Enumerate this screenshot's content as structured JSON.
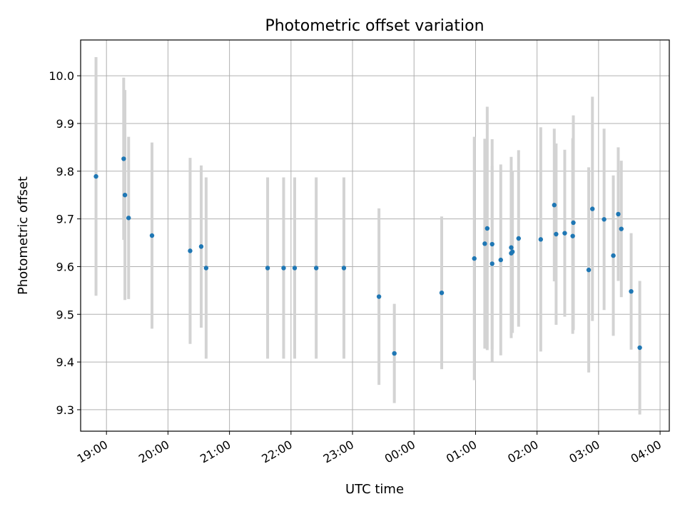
{
  "chart_data": {
    "type": "scatter",
    "title": "Photometric offset variation",
    "xlabel": "UTC time",
    "ylabel": "Photometric offset",
    "grid": true,
    "x_tick_labels": [
      "19:00",
      "20:00",
      "21:00",
      "22:00",
      "23:00",
      "00:00",
      "01:00",
      "02:00",
      "03:00",
      "04:00"
    ],
    "y_tick_labels": [
      "9.3",
      "9.4",
      "9.5",
      "9.6",
      "9.7",
      "9.8",
      "9.9",
      "10.0"
    ],
    "ylim": [
      9.255,
      10.075
    ],
    "xlim_hours": [
      18.58,
      28.15
    ],
    "colors": {
      "point": "#1f77b4",
      "errorbar": "#d3d3d3",
      "grid": "#b0b0b0"
    },
    "points": [
      {
        "t": 18.83,
        "y": 9.789,
        "err": 0.25
      },
      {
        "t": 19.28,
        "y": 9.826,
        "err": 0.17
      },
      {
        "t": 19.3,
        "y": 9.75,
        "err": 0.22
      },
      {
        "t": 19.36,
        "y": 9.702,
        "err": 0.17
      },
      {
        "t": 19.74,
        "y": 9.665,
        "err": 0.195
      },
      {
        "t": 20.36,
        "y": 9.633,
        "err": 0.195
      },
      {
        "t": 20.54,
        "y": 9.642,
        "err": 0.17
      },
      {
        "t": 20.62,
        "y": 9.597,
        "err": 0.19
      },
      {
        "t": 21.62,
        "y": 9.597,
        "err": 0.19
      },
      {
        "t": 21.88,
        "y": 9.597,
        "err": 0.19
      },
      {
        "t": 22.06,
        "y": 9.597,
        "err": 0.19
      },
      {
        "t": 22.41,
        "y": 9.597,
        "err": 0.19
      },
      {
        "t": 22.86,
        "y": 9.597,
        "err": 0.19
      },
      {
        "t": 23.43,
        "y": 9.537,
        "err": 0.185
      },
      {
        "t": 23.68,
        "y": 9.418,
        "err": 0.104
      },
      {
        "t": 24.45,
        "y": 9.545,
        "err": 0.16
      },
      {
        "t": 24.98,
        "y": 9.617,
        "err": 0.255
      },
      {
        "t": 25.15,
        "y": 9.648,
        "err": 0.22
      },
      {
        "t": 25.19,
        "y": 9.68,
        "err": 0.255
      },
      {
        "t": 25.27,
        "y": 9.606,
        "err": 0.205
      },
      {
        "t": 25.27,
        "y": 9.647,
        "err": 0.22
      },
      {
        "t": 25.41,
        "y": 9.614,
        "err": 0.2
      },
      {
        "t": 25.58,
        "y": 9.628,
        "err": 0.17
      },
      {
        "t": 25.58,
        "y": 9.64,
        "err": 0.19
      },
      {
        "t": 25.6,
        "y": 9.631,
        "err": 0.17
      },
      {
        "t": 25.7,
        "y": 9.659,
        "err": 0.185
      },
      {
        "t": 26.06,
        "y": 9.657,
        "err": 0.235
      },
      {
        "t": 26.28,
        "y": 9.729,
        "err": 0.16
      },
      {
        "t": 26.31,
        "y": 9.668,
        "err": 0.19
      },
      {
        "t": 26.45,
        "y": 9.67,
        "err": 0.175
      },
      {
        "t": 26.58,
        "y": 9.664,
        "err": 0.205
      },
      {
        "t": 26.59,
        "y": 9.692,
        "err": 0.225
      },
      {
        "t": 26.84,
        "y": 9.593,
        "err": 0.215
      },
      {
        "t": 26.9,
        "y": 9.721,
        "err": 0.235
      },
      {
        "t": 27.09,
        "y": 9.699,
        "err": 0.19
      },
      {
        "t": 27.24,
        "y": 9.623,
        "err": 0.168
      },
      {
        "t": 27.32,
        "y": 9.71,
        "err": 0.14
      },
      {
        "t": 27.37,
        "y": 9.679,
        "err": 0.143
      },
      {
        "t": 27.53,
        "y": 9.548,
        "err": 0.122
      },
      {
        "t": 27.67,
        "y": 9.43,
        "err": 0.14
      }
    ]
  }
}
